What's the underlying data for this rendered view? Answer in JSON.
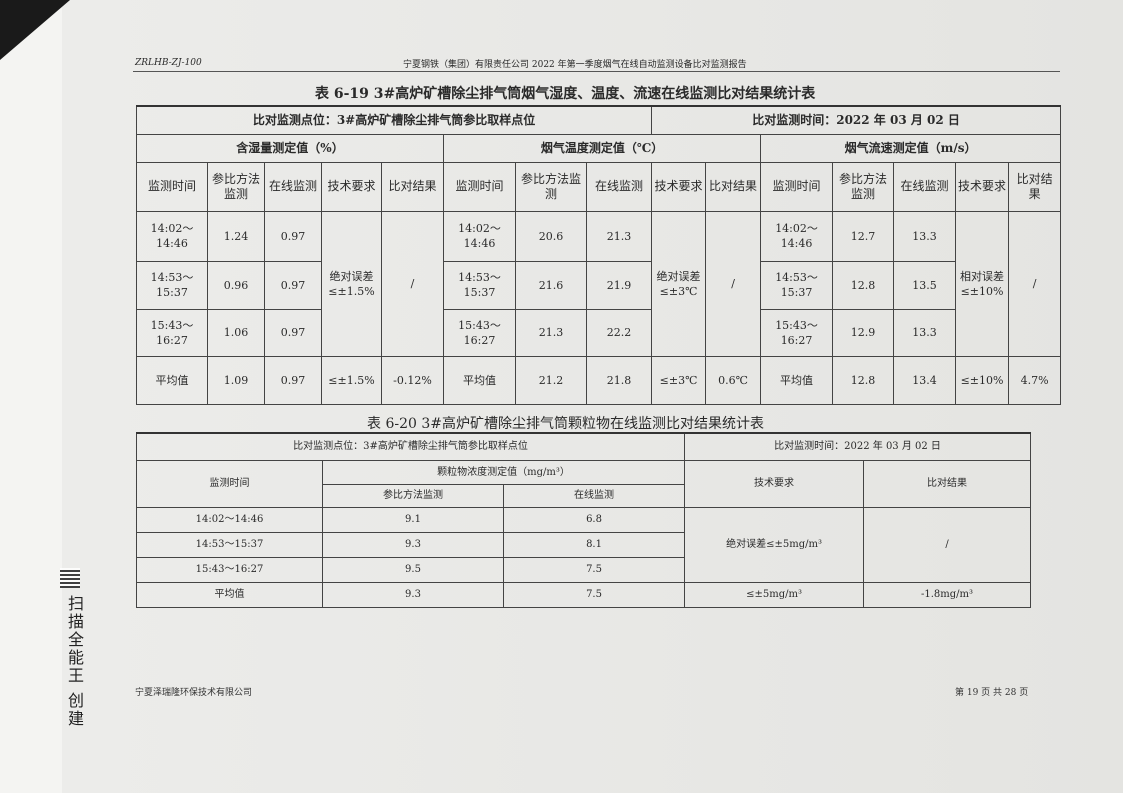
{
  "header": {
    "code": "ZRLHB-ZJ-100",
    "report_title": "宁夏钢铁（集团）有限责任公司 2022 年第一季度烟气在线自动监测设备比对监测报告"
  },
  "table1": {
    "title": "表 6-19   3#高炉矿槽除尘排气筒烟气湿度、温度、流速在线监测比对结果统计表",
    "location": "比对监测点位：3#高炉矿槽除尘排气筒参比取样点位",
    "time": "比对监测时间：2022 年 03 月 02 日",
    "groups": [
      "含湿量测定值（%）",
      "烟气温度测定值（℃）",
      "烟气流速测定值（m/s）"
    ],
    "subheaders": [
      "监测时间",
      "参比方法监测",
      "在线监测",
      "技术要求",
      "比对结果"
    ],
    "humidity": {
      "rows": [
        [
          "14:02～14:46",
          "1.24",
          "0.97"
        ],
        [
          "14:53～15:37",
          "0.96",
          "0.97"
        ],
        [
          "15:43～16:27",
          "1.06",
          "0.97"
        ]
      ],
      "requirement": "绝对误差≤±1.5%",
      "result": "/",
      "avg": [
        "平均值",
        "1.09",
        "0.97",
        "≤±1.5%",
        "-0.12%"
      ]
    },
    "temperature": {
      "rows": [
        [
          "14:02～14:46",
          "20.6",
          "21.3"
        ],
        [
          "14:53～15:37",
          "21.6",
          "21.9"
        ],
        [
          "15:43～16:27",
          "21.3",
          "22.2"
        ]
      ],
      "requirement": "绝对误差≤±3℃",
      "result": "/",
      "avg": [
        "平均值",
        "21.2",
        "21.8",
        "≤±3℃",
        "0.6℃"
      ]
    },
    "velocity": {
      "rows": [
        [
          "14:02～14:46",
          "12.7",
          "13.3"
        ],
        [
          "14:53～15:37",
          "12.8",
          "13.5"
        ],
        [
          "15:43～16:27",
          "12.9",
          "13.3"
        ]
      ],
      "requirement": "相对误差≤±10%",
      "result": "/",
      "avg": [
        "平均值",
        "12.8",
        "13.4",
        "≤±10%",
        "4.7%"
      ]
    }
  },
  "table2": {
    "title": "表 6-20   3#高炉矿槽除尘排气筒颗粒物在线监测比对结果统计表",
    "location": "比对监测点位：3#高炉矿槽除尘排气筒参比取样点位",
    "time": "比对监测时间：2022 年 03 月 02 日",
    "headers": {
      "time": "监测时间",
      "conc": "颗粒物浓度测定值（mg/m³）",
      "ref": "参比方法监测",
      "online": "在线监测",
      "req": "技术要求",
      "result": "比对结果"
    },
    "rows": [
      [
        "14:02～14:46",
        "9.1",
        "6.8"
      ],
      [
        "14:53～15:37",
        "9.3",
        "8.1"
      ],
      [
        "15:43～16:27",
        "9.5",
        "7.5"
      ]
    ],
    "requirement": "绝对误差≤±5mg/m³",
    "result": "/",
    "avg": [
      "平均值",
      "9.3",
      "7.5",
      "≤±5mg/m³",
      "-1.8mg/m³"
    ]
  },
  "footer": {
    "company": "宁夏泽瑞隆环保技术有限公司",
    "page": "第 19 页 共 28 页"
  },
  "watermark": "扫描全能王 创建"
}
